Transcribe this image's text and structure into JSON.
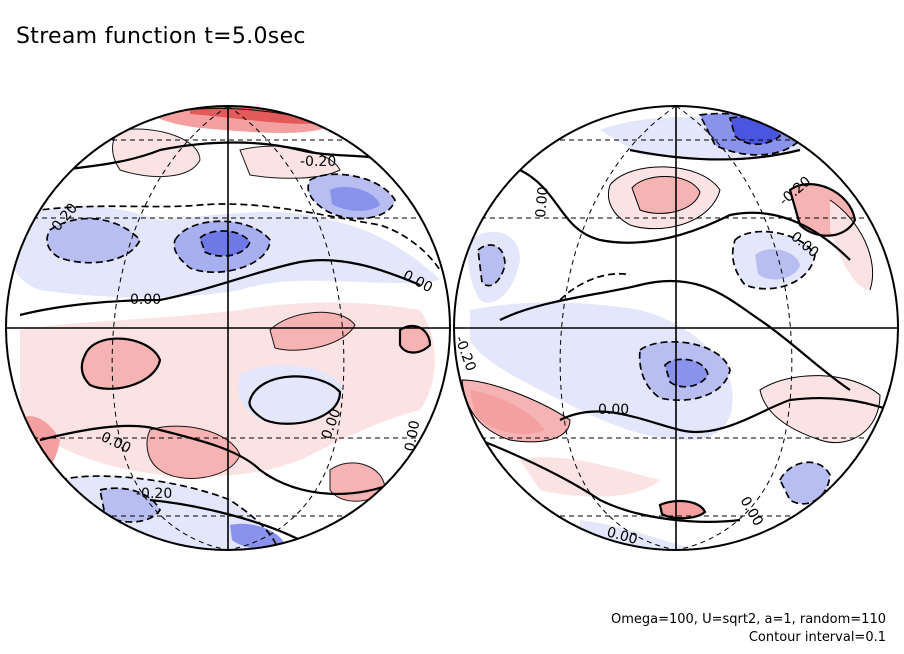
{
  "title": "Stream function t=5.0sec",
  "caption_line1": "Omega=100, U=sqrt2, a=1, random=110",
  "caption_line2": "Contour interval=0.1",
  "colors": {
    "positive": "#e05050",
    "negative": "#4a55e0",
    "positive_light": "#fbe3e3",
    "negative_light": "#e4e6fb"
  },
  "contour_labels": {
    "left": [
      "0.20",
      "-0.20",
      "0.00",
      "0.00",
      "0.00",
      "0.00",
      "0.00",
      "-0.20",
      "0.00"
    ],
    "right": [
      "0.00",
      "-0.20",
      "0.00",
      "-0.20",
      "0.00",
      "0.00",
      "0.00"
    ]
  }
}
